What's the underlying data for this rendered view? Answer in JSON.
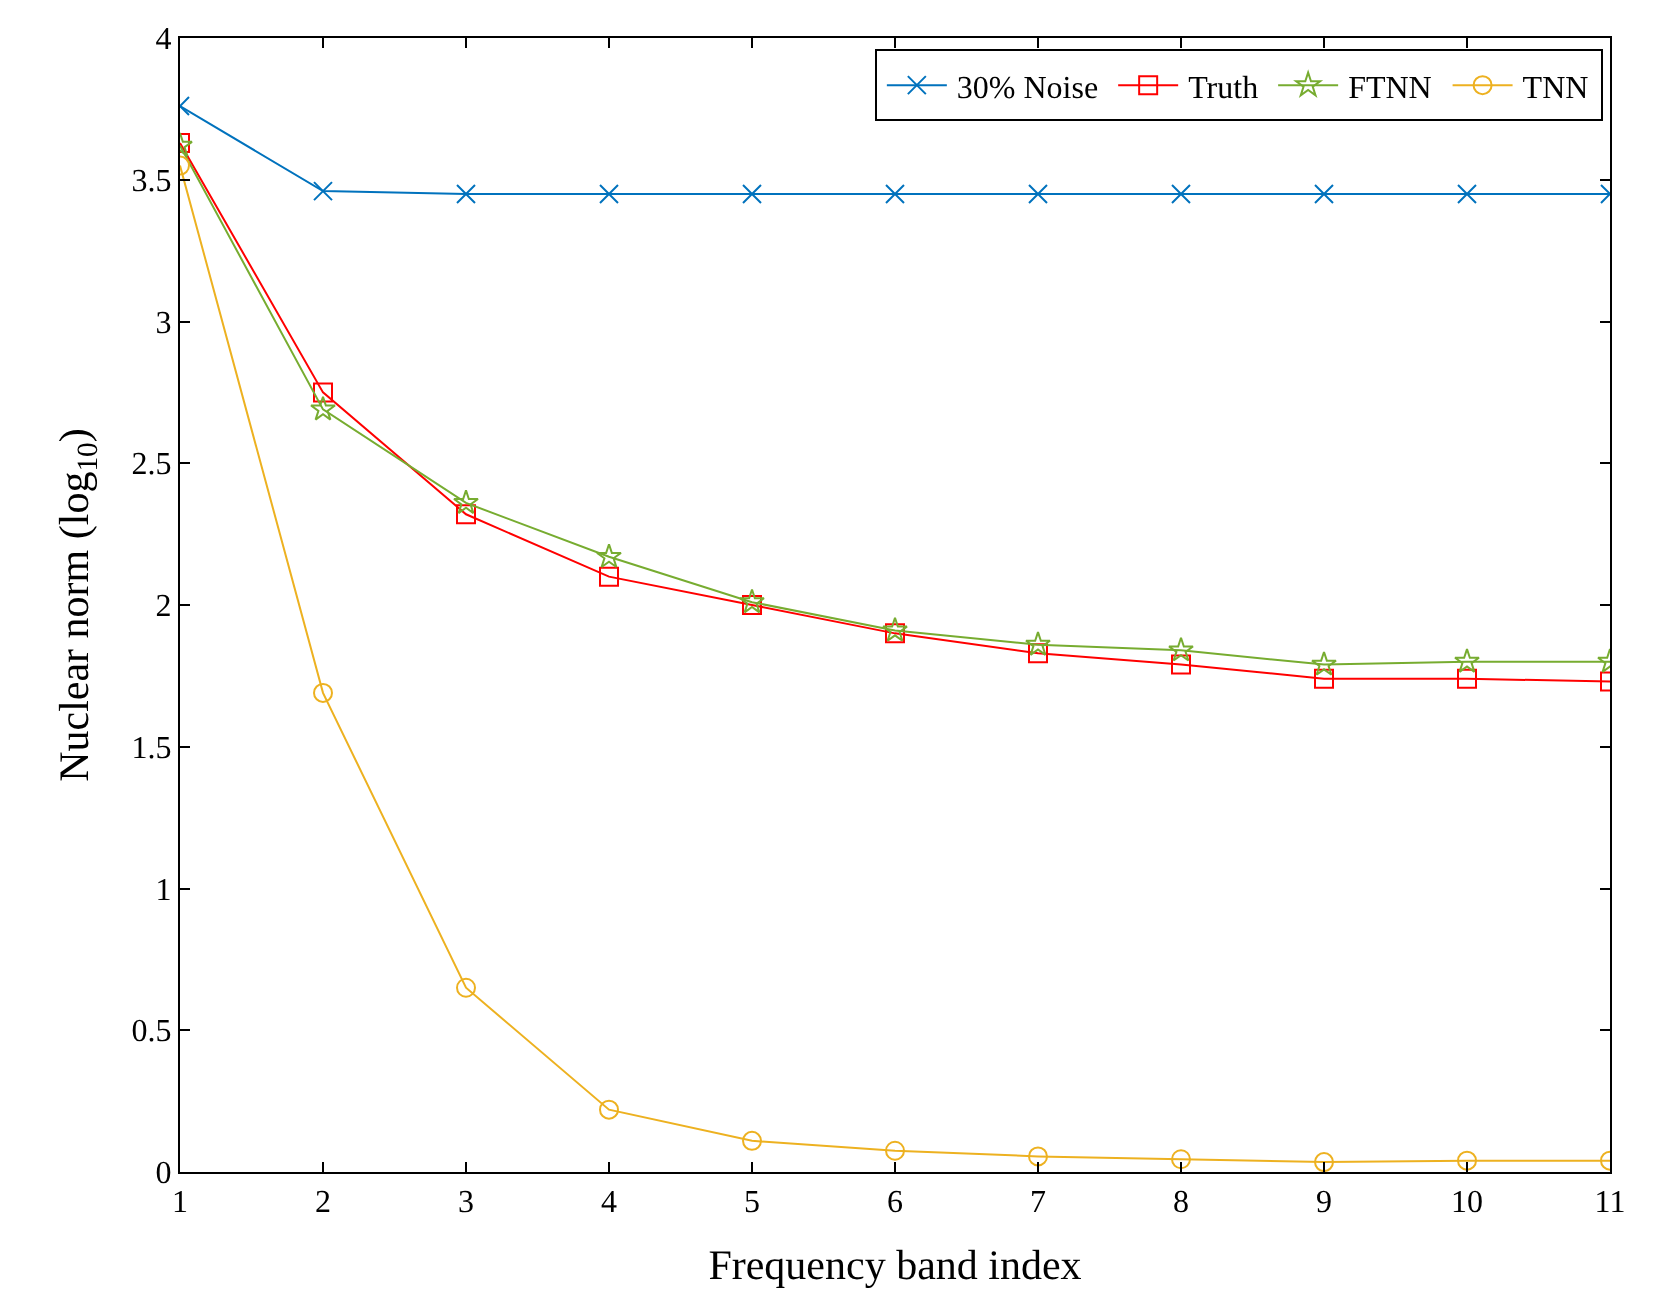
{
  "chart_data": {
    "type": "line",
    "xlabel": "Frequency band index",
    "ylabel": "Nuclear norm (log$_{10}$)",
    "x": [
      1,
      2,
      3,
      4,
      5,
      6,
      7,
      8,
      9,
      10,
      11
    ],
    "xlim": [
      1,
      11
    ],
    "xticks": [
      1,
      2,
      3,
      4,
      5,
      6,
      7,
      8,
      9,
      10,
      11
    ],
    "ylim": [
      0,
      4
    ],
    "yticks": [
      0,
      0.5,
      1,
      1.5,
      2,
      2.5,
      3,
      3.5,
      4
    ],
    "legend": "top right",
    "series": [
      {
        "name": "30% Noise",
        "color": "#0072bd",
        "marker": "cross",
        "values": [
          3.76,
          3.46,
          3.45,
          3.45,
          3.45,
          3.45,
          3.45,
          3.45,
          3.45,
          3.45,
          3.45
        ]
      },
      {
        "name": "Truth",
        "color": "#ff0000",
        "marker": "square",
        "values": [
          3.63,
          2.75,
          2.32,
          2.1,
          2.0,
          1.9,
          1.83,
          1.79,
          1.74,
          1.74,
          1.73
        ]
      },
      {
        "name": "FTNN",
        "color": "#77ac30",
        "marker": "star",
        "values": [
          3.62,
          2.69,
          2.36,
          2.17,
          2.01,
          1.91,
          1.86,
          1.84,
          1.79,
          1.8,
          1.8
        ]
      },
      {
        "name": "TNN",
        "color": "#edb120",
        "marker": "circle",
        "values": [
          3.55,
          1.69,
          0.65,
          0.22,
          0.11,
          0.075,
          0.055,
          0.045,
          0.035,
          0.04,
          0.04
        ]
      }
    ]
  }
}
